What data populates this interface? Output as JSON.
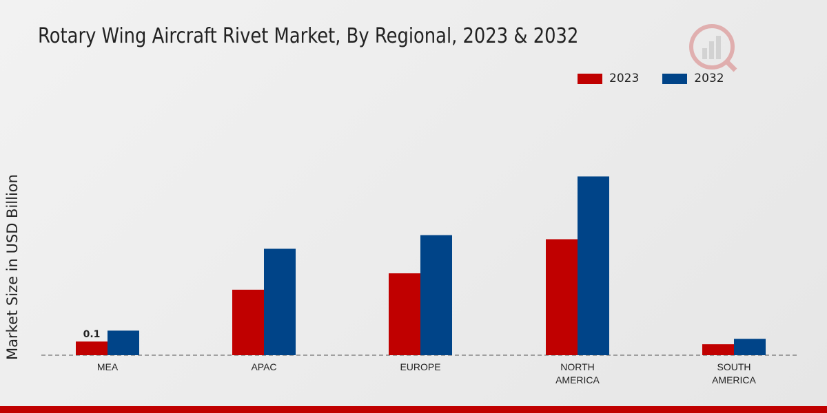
{
  "title": "Rotary Wing Aircraft Rivet Market, By Regional, 2023 & 2032",
  "chart_data": {
    "type": "bar",
    "title": "Rotary Wing Aircraft Rivet Market, By Regional, 2023 & 2032",
    "xlabel": "",
    "ylabel": "Market Size in USD Billion",
    "categories": [
      "MEA",
      "APAC",
      "EUROPE",
      "NORTH AMERICA",
      "SOUTH AMERICA"
    ],
    "category_lines": [
      [
        "MEA"
      ],
      [
        "APAC"
      ],
      [
        "EUROPE"
      ],
      [
        "NORTH",
        "AMERICA"
      ],
      [
        "SOUTH",
        "AMERICA"
      ]
    ],
    "series": [
      {
        "name": "2023",
        "color": "#c00000",
        "values": [
          0.1,
          0.48,
          0.6,
          0.85,
          0.08
        ]
      },
      {
        "name": "2032",
        "color": "#004488",
        "values": [
          0.18,
          0.78,
          0.88,
          1.31,
          0.12
        ]
      }
    ],
    "data_labels": [
      {
        "series": 0,
        "index": 0,
        "text": "0.1"
      }
    ],
    "ylim": [
      0,
      2.2
    ],
    "grid": false,
    "legend_position": "top-right"
  }
}
